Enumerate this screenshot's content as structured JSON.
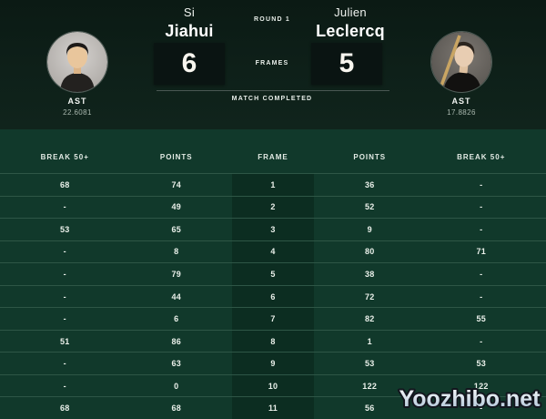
{
  "header": {
    "round_label": "ROUND 1",
    "frames_label": "FRAMES",
    "status_label": "MATCH COMPLETED",
    "player_left": {
      "first_name": "Si",
      "last_name": "Jiahui",
      "score": "6",
      "stat_label": "AST",
      "stat_value": "22.6081"
    },
    "player_right": {
      "first_name": "Julien",
      "last_name": "Leclercq",
      "score": "5",
      "stat_label": "AST",
      "stat_value": "17.8826"
    }
  },
  "table": {
    "columns": [
      "BREAK 50+",
      "POINTS",
      "FRAME",
      "POINTS",
      "BREAK 50+"
    ],
    "rows": [
      [
        "68",
        "74",
        "1",
        "36",
        "-"
      ],
      [
        "-",
        "49",
        "2",
        "52",
        "-"
      ],
      [
        "53",
        "65",
        "3",
        "9",
        "-"
      ],
      [
        "-",
        "8",
        "4",
        "80",
        "71"
      ],
      [
        "-",
        "79",
        "5",
        "38",
        "-"
      ],
      [
        "-",
        "44",
        "6",
        "72",
        "-"
      ],
      [
        "-",
        "6",
        "7",
        "82",
        "55"
      ],
      [
        "51",
        "86",
        "8",
        "1",
        "-"
      ],
      [
        "-",
        "63",
        "9",
        "53",
        "53"
      ],
      [
        "-",
        "0",
        "10",
        "122",
        "122"
      ],
      [
        "68",
        "68",
        "11",
        "56",
        "-"
      ]
    ]
  },
  "watermark": "Yoozhibo.net",
  "colors": {
    "top_band": "#0d1d17",
    "table_bg": "#11392b",
    "frame_col_bg": "#0c2d21",
    "score_box_bg": "#0a1412",
    "text": "#eaf0ea"
  }
}
